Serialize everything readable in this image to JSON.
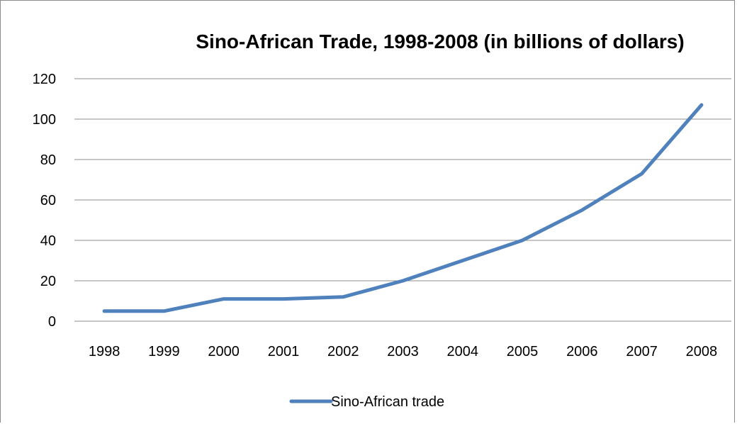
{
  "chart_data": {
    "type": "line",
    "title": "Sino-African Trade, 1998-2008 (in billions of dollars)",
    "xlabel": "",
    "ylabel": "",
    "categories": [
      "1998",
      "1999",
      "2000",
      "2001",
      "2002",
      "2003",
      "2004",
      "2005",
      "2006",
      "2007",
      "2008"
    ],
    "series": [
      {
        "name": "Sino-African trade",
        "values": [
          5,
          5,
          11,
          11,
          12,
          20,
          30,
          40,
          55,
          73,
          107
        ],
        "color": "#4f81bd"
      }
    ],
    "ylim": [
      0,
      120
    ],
    "yticks": [
      "0",
      "20",
      "40",
      "60",
      "80",
      "100",
      "120"
    ],
    "grid": true,
    "legend_position": "bottom"
  }
}
